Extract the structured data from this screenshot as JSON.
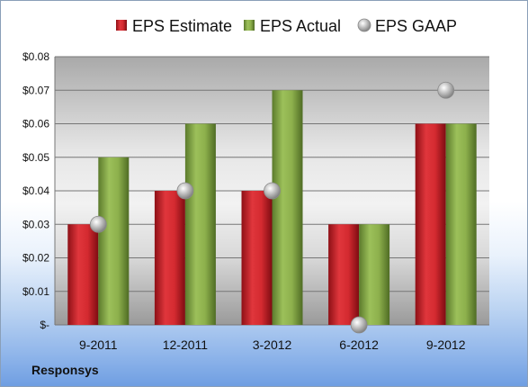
{
  "footer": {
    "company": "Responsys"
  },
  "chart_data": {
    "type": "bar",
    "title": "",
    "xlabel": "",
    "ylabel": "",
    "categories": [
      "9-2011",
      "12-2011",
      "3-2012",
      "6-2012",
      "9-2012"
    ],
    "ylim": [
      0,
      0.08
    ],
    "yticks": [
      0,
      0.01,
      0.02,
      0.03,
      0.04,
      0.05,
      0.06,
      0.07,
      0.08
    ],
    "ytick_labels": [
      "$-",
      "$0.01",
      "$0.02",
      "$0.03",
      "$0.04",
      "$0.05",
      "$0.06",
      "$0.07",
      "$0.08"
    ],
    "grid": true,
    "legend_position": "top",
    "series": [
      {
        "name": "EPS Estimate",
        "kind": "bar",
        "color": "#c0262c",
        "values": [
          0.03,
          0.04,
          0.04,
          0.03,
          0.06
        ]
      },
      {
        "name": "EPS Actual",
        "kind": "bar",
        "color": "#7fa04a",
        "values": [
          0.05,
          0.06,
          0.07,
          0.03,
          0.06
        ]
      },
      {
        "name": "EPS GAAP",
        "kind": "marker",
        "color": "#a8a8a8",
        "values": [
          0.03,
          0.04,
          0.04,
          0.0,
          0.07
        ]
      }
    ]
  }
}
